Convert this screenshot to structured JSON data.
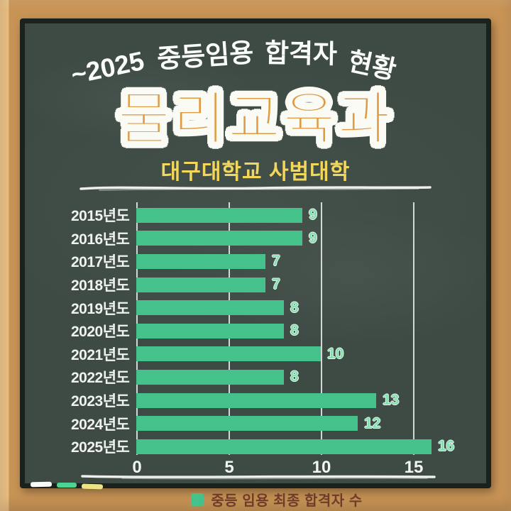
{
  "poster": {
    "top_title": "~2025 중등임용 합격자 현황",
    "top_title_words": [
      "~2025",
      "중등임용",
      "합격자",
      "현황"
    ],
    "main_title": "물리교육과",
    "subtitle": "대구대학교 사범대학"
  },
  "chart_data": {
    "type": "bar",
    "orientation": "horizontal",
    "title": "~2025 중등임용 합격자 현황 — 물리교육과 (대구대학교 사범대학)",
    "categories": [
      "2015년도",
      "2016년도",
      "2017년도",
      "2018년도",
      "2019년도",
      "2020년도",
      "2021년도",
      "2022년도",
      "2023년도",
      "2024년도",
      "2025년도"
    ],
    "values": [
      9,
      9,
      7,
      7,
      8,
      8,
      10,
      8,
      13,
      12,
      16
    ],
    "series": [
      {
        "name": "중등 임용 최종 합격자 수",
        "values": [
          9,
          9,
          7,
          7,
          8,
          8,
          10,
          8,
          13,
          12,
          16
        ]
      }
    ],
    "xticks": [
      0,
      5,
      10,
      15
    ],
    "xlim": [
      0,
      17.7
    ],
    "grid": true,
    "legend_position": "bottom",
    "bar_color": "#45C28B",
    "value_label_color": "#82DFAF"
  },
  "legend": {
    "swatch_color": "#45C28B",
    "label": "중등 임용 최종 합격자 수"
  },
  "decorations": {
    "chalk_sticks": [
      {
        "name": "white-chalk",
        "color": "#FAFAF7"
      },
      {
        "name": "green-chalk",
        "color": "#4CD492"
      },
      {
        "name": "yellow-chalk",
        "color": "#EDE387"
      }
    ]
  },
  "colors": {
    "board": "#3E4A44",
    "frame": "#C89456",
    "bar": "#45C28B",
    "main_title": "#E09A41",
    "subtitle": "#F2D75C",
    "legend_text": "#6E3C2A",
    "gridline": "#ECF1EE"
  }
}
